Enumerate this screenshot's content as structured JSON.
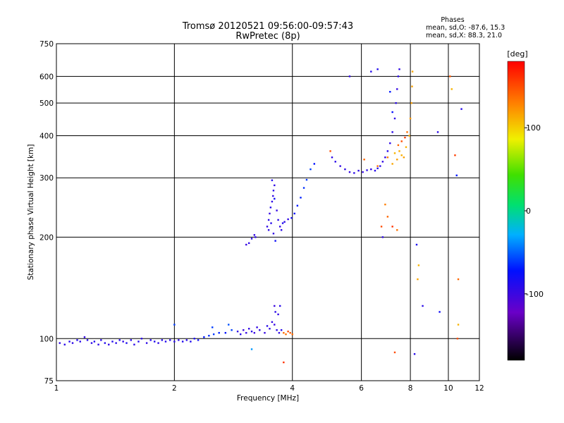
{
  "header": {
    "title_line1": "Tromsø 20120521 09:56:00-09:57:43",
    "title_line2": "RwPretec (8p)"
  },
  "phases_info": {
    "heading": "Phases",
    "line_o": "mean, sd,O: -87.6, 15.3",
    "line_x": "mean, sd,X:  88.3, 21.0"
  },
  "chart_data": {
    "type": "scatter",
    "xlabel": "Frequency [MHz]",
    "ylabel": "Stationary phase Virtual Height [km]",
    "x_scale": "log",
    "y_scale": "log",
    "xlim": [
      1,
      12
    ],
    "ylim": [
      75,
      750
    ],
    "x_ticks": [
      1,
      2,
      4,
      6,
      8,
      10,
      12
    ],
    "y_ticks": [
      75,
      100,
      200,
      300,
      400,
      500,
      600,
      750
    ],
    "grid": true,
    "colorbar": {
      "label": "[deg]",
      "range": [
        -180,
        180
      ],
      "ticks": [
        100,
        0,
        -100
      ]
    },
    "series": [
      {
        "points": [
          [
            1.02,
            97,
            -95
          ],
          [
            1.05,
            96,
            -92
          ],
          [
            1.08,
            98,
            -90
          ],
          [
            1.1,
            97,
            -94
          ],
          [
            1.13,
            99,
            -88
          ],
          [
            1.15,
            98,
            -92
          ],
          [
            1.18,
            101,
            -96
          ],
          [
            1.2,
            99,
            -90
          ],
          [
            1.23,
            97,
            -95
          ],
          [
            1.25,
            98,
            -87
          ],
          [
            1.28,
            96,
            -93
          ],
          [
            1.3,
            99,
            -91
          ],
          [
            1.33,
            97,
            -89
          ],
          [
            1.36,
            96,
            -94
          ],
          [
            1.39,
            98,
            -88
          ],
          [
            1.42,
            97,
            -92
          ],
          [
            1.45,
            99,
            -90
          ],
          [
            1.48,
            98,
            -95
          ],
          [
            1.51,
            97,
            -86
          ],
          [
            1.55,
            99,
            -91
          ],
          [
            1.58,
            96,
            -93
          ],
          [
            1.62,
            98,
            -89
          ],
          [
            1.65,
            100,
            -92
          ],
          [
            1.7,
            97,
            -94
          ],
          [
            1.74,
            99,
            -90
          ],
          [
            1.78,
            98,
            -88
          ],
          [
            1.82,
            97,
            -93
          ],
          [
            1.86,
            99,
            -91
          ],
          [
            1.9,
            98,
            -89
          ],
          [
            1.95,
            99,
            -92
          ],
          [
            2.0,
            98,
            -90
          ],
          [
            2.05,
            99,
            -94
          ],
          [
            2.1,
            98,
            -88
          ],
          [
            2.15,
            99,
            -91
          ],
          [
            2.2,
            98,
            -87
          ],
          [
            2.25,
            100,
            -85
          ],
          [
            2.3,
            99,
            -80
          ],
          [
            2.38,
            101,
            -70
          ],
          [
            2.45,
            102,
            -65
          ],
          [
            2.52,
            103,
            -62
          ],
          [
            2.6,
            104,
            -68
          ],
          [
            2.7,
            104,
            -72
          ],
          [
            2.8,
            106,
            -60
          ],
          [
            2.9,
            105,
            -95
          ],
          [
            2.95,
            103,
            -92
          ],
          [
            3.0,
            106,
            -100
          ],
          [
            3.05,
            104,
            -97
          ],
          [
            3.1,
            107,
            -95
          ],
          [
            3.15,
            105,
            -93
          ],
          [
            3.2,
            104,
            -99
          ],
          [
            3.25,
            108,
            -96
          ],
          [
            3.3,
            106,
            -94
          ],
          [
            3.4,
            104,
            -98
          ],
          [
            3.45,
            109,
            -92
          ],
          [
            3.5,
            107,
            -95
          ],
          [
            3.55,
            112,
            -97
          ],
          [
            3.6,
            110,
            -99
          ],
          [
            3.65,
            106,
            -93
          ],
          [
            3.7,
            104,
            -96
          ],
          [
            3.75,
            106,
            -90
          ],
          [
            3.62,
            120,
            -92
          ],
          [
            3.68,
            118,
            -95
          ],
          [
            3.72,
            125,
            -90
          ],
          [
            3.6,
            125,
            -100
          ],
          [
            3.8,
            104,
            140
          ],
          [
            3.85,
            103,
            135
          ],
          [
            3.9,
            105,
            150
          ],
          [
            3.95,
            104,
            145
          ],
          [
            4.0,
            103,
            138
          ],
          [
            2.5,
            108,
            -60
          ],
          [
            2.75,
            110,
            -55
          ],
          [
            3.15,
            93,
            -35
          ],
          [
            3.05,
            190,
            -98
          ],
          [
            3.1,
            192,
            -95
          ],
          [
            3.15,
            198,
            -92
          ],
          [
            3.2,
            203,
            -96
          ],
          [
            3.22,
            200,
            -94
          ],
          [
            3.45,
            215,
            -95
          ],
          [
            3.48,
            225,
            -92
          ],
          [
            3.5,
            235,
            -98
          ],
          [
            3.52,
            245,
            -90
          ],
          [
            3.55,
            255,
            -94
          ],
          [
            3.57,
            265,
            -96
          ],
          [
            3.58,
            275,
            -92
          ],
          [
            3.6,
            285,
            -95
          ],
          [
            3.55,
            295,
            -88
          ],
          [
            3.6,
            260,
            -80
          ],
          [
            3.65,
            240,
            -97
          ],
          [
            3.68,
            225,
            -93
          ],
          [
            3.72,
            215,
            -95
          ],
          [
            3.75,
            210,
            -92
          ],
          [
            3.58,
            205,
            -96
          ],
          [
            3.62,
            195,
            -78
          ],
          [
            3.48,
            210,
            -94
          ],
          [
            3.53,
            220,
            -90
          ],
          [
            3.78,
            220,
            -88
          ],
          [
            3.82,
            222,
            -92
          ],
          [
            3.9,
            226,
            -95
          ],
          [
            3.98,
            228,
            -82
          ],
          [
            4.05,
            235,
            -76
          ],
          [
            4.12,
            248,
            -70
          ],
          [
            4.2,
            262,
            -68
          ],
          [
            4.28,
            280,
            -64
          ],
          [
            4.35,
            296,
            -62
          ],
          [
            4.45,
            318,
            -60
          ],
          [
            4.55,
            330,
            -72
          ],
          [
            5.05,
            345,
            -95
          ],
          [
            5.15,
            335,
            -92
          ],
          [
            5.3,
            325,
            -96
          ],
          [
            5.45,
            318,
            -94
          ],
          [
            5.6,
            312,
            -97
          ],
          [
            5.75,
            310,
            -93
          ],
          [
            5.9,
            315,
            -95
          ],
          [
            6.05,
            312,
            -98
          ],
          [
            6.2,
            316,
            -92
          ],
          [
            6.35,
            318,
            -94
          ],
          [
            6.5,
            315,
            -90
          ],
          [
            6.6,
            320,
            -88
          ],
          [
            6.7,
            325,
            -92
          ],
          [
            6.8,
            335,
            -95
          ],
          [
            6.9,
            345,
            -93
          ],
          [
            7.0,
            360,
            -90
          ],
          [
            7.1,
            380,
            -94
          ],
          [
            7.2,
            410,
            -92
          ],
          [
            7.3,
            450,
            -95
          ],
          [
            7.35,
            500,
            -93
          ],
          [
            7.4,
            550,
            -97
          ],
          [
            7.45,
            600,
            -92
          ],
          [
            7.5,
            630,
            -95
          ],
          [
            7.2,
            470,
            -75
          ],
          [
            7.1,
            540,
            -70
          ],
          [
            5.6,
            600,
            -95
          ],
          [
            6.35,
            620,
            -90
          ],
          [
            6.6,
            630,
            -88
          ],
          [
            7.2,
            330,
            115
          ],
          [
            7.4,
            340,
            118
          ],
          [
            7.6,
            350,
            112
          ],
          [
            7.8,
            370,
            110
          ],
          [
            7.95,
            400,
            115
          ],
          [
            8.0,
            450,
            120
          ],
          [
            8.05,
            500,
            118
          ],
          [
            8.08,
            560,
            116
          ],
          [
            8.1,
            620,
            115
          ],
          [
            7.7,
            345,
            117
          ],
          [
            7.5,
            360,
            113
          ],
          [
            7.3,
            355,
            110
          ],
          [
            7.45,
            375,
            140
          ],
          [
            7.6,
            385,
            150
          ],
          [
            7.75,
            395,
            155
          ],
          [
            7.85,
            410,
            135
          ],
          [
            5.0,
            360,
            150
          ],
          [
            6.1,
            340,
            140
          ],
          [
            6.6,
            325,
            135
          ],
          [
            7.0,
            345,
            130
          ],
          [
            6.9,
            250,
            130
          ],
          [
            7.0,
            230,
            140
          ],
          [
            6.75,
            215,
            150
          ],
          [
            7.2,
            215,
            160
          ],
          [
            7.4,
            210,
            135
          ],
          [
            6.8,
            200,
            -95
          ],
          [
            8.3,
            190,
            -85
          ],
          [
            8.4,
            165,
            110
          ],
          [
            8.35,
            150,
            115
          ],
          [
            8.6,
            125,
            -92
          ],
          [
            8.2,
            90,
            -90
          ],
          [
            7.3,
            91,
            150
          ],
          [
            9.5,
            120,
            -80
          ],
          [
            10.1,
            600,
            145
          ],
          [
            10.2,
            550,
            110
          ],
          [
            10.4,
            350,
            155
          ],
          [
            10.5,
            305,
            -70
          ],
          [
            10.8,
            480,
            -90
          ],
          [
            10.6,
            110,
            110
          ],
          [
            10.55,
            100,
            150
          ],
          [
            10.6,
            150,
            140
          ],
          [
            9.4,
            410,
            -92
          ],
          [
            3.8,
            85,
            160
          ],
          [
            2.0,
            110,
            -60
          ]
        ]
      }
    ]
  }
}
